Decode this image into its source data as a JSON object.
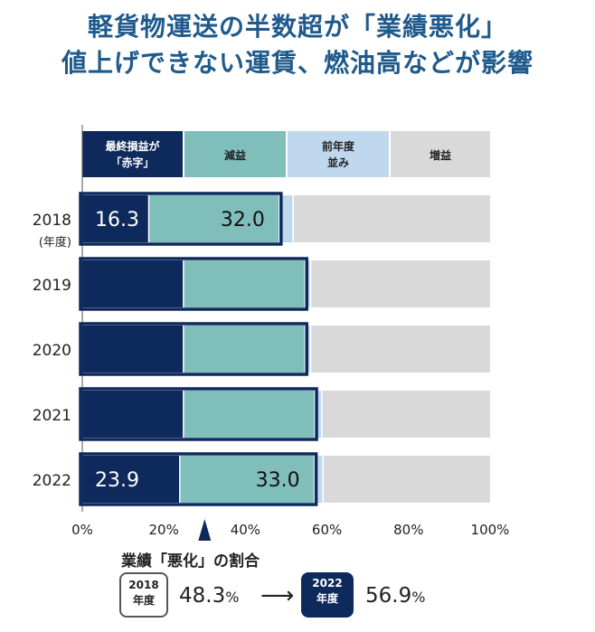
{
  "title": {
    "line1": "軽貨物運送の半数超が「業績悪化」",
    "line2": "値上げできない運賃、燃油高などが影響"
  },
  "colors": {
    "deficit": "#0e2a5c",
    "decrease": "#80bebc",
    "flat": "#c0d8ee",
    "increase": "#d9d9d9",
    "title": "#1f5a8c",
    "outline": "#0e2a5c"
  },
  "chart_data": {
    "type": "bar",
    "orientation": "horizontal",
    "stacked": true,
    "categories": [
      "2018",
      "2019",
      "2020",
      "2021",
      "2022"
    ],
    "category_note": "(年度)",
    "series": [
      {
        "name": "最終損益が「赤字」",
        "legend_lines": [
          "最終損益が",
          "「赤字」"
        ],
        "values": [
          16.3,
          24.8,
          24.8,
          24.8,
          23.9
        ],
        "labels": [
          "16.3",
          "",
          "",
          "",
          "23.9"
        ]
      },
      {
        "name": "減益",
        "legend_lines": [
          "減益"
        ],
        "values": [
          32.0,
          29.8,
          29.8,
          32.2,
          33.0
        ],
        "labels": [
          "32.0",
          "",
          "",
          "",
          "33.0"
        ]
      },
      {
        "name": "前年度並み",
        "legend_lines": [
          "前年度",
          "並み"
        ],
        "values": [
          3.4,
          1.4,
          1.4,
          1.7,
          2.1
        ],
        "labels": [
          "",
          "",
          "",
          "",
          ""
        ]
      },
      {
        "name": "増益",
        "legend_lines": [
          "増益"
        ],
        "values": [
          48.3,
          44.0,
          44.0,
          41.3,
          41.0
        ],
        "labels": [
          "",
          "",
          "",
          "",
          ""
        ]
      }
    ],
    "xlim": [
      0,
      100
    ],
    "xticks": [
      "0%",
      "20%",
      "40%",
      "60%",
      "80%",
      "100%"
    ],
    "marker_value": 30
  },
  "summary": {
    "label": "業績「悪化」の割合",
    "from_year": "2018",
    "from_year_unit": "年度",
    "from_value": "48.3",
    "to_year": "2022",
    "to_year_unit": "年度",
    "to_value": "56.9",
    "unit": "%",
    "arrow": "⟶"
  }
}
